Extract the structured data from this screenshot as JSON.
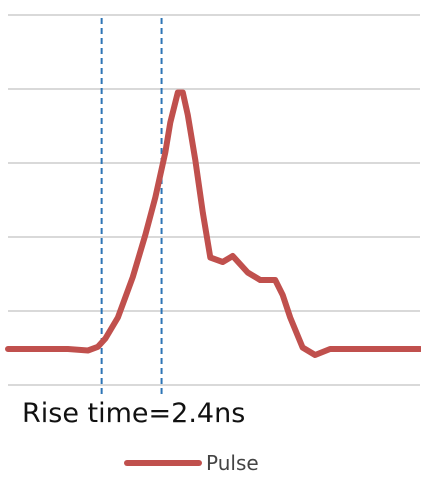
{
  "chart_data": {
    "type": "line",
    "title": "",
    "xlabel": "",
    "ylabel": "",
    "grid": true,
    "gridlines": 6,
    "annotation": "Rise time=2.4ns",
    "markers": [
      3.75,
      6.15
    ],
    "legend": "bottom",
    "series": [
      {
        "name": "Pulse",
        "color": "#c0504d",
        "x": [
          0,
          2.4,
          3.2,
          3.6,
          3.9,
          4.4,
          5.0,
          5.5,
          5.9,
          6.3,
          6.5,
          6.8,
          7.0,
          7.2,
          7.5,
          7.8,
          8.1,
          8.6,
          9.0,
          9.6,
          10.1,
          10.7,
          11.0,
          11.3,
          11.8,
          12.3,
          12.9,
          16.5
        ],
        "values": [
          0.24,
          0.24,
          0.23,
          0.255,
          0.31,
          0.45,
          0.72,
          1.0,
          1.25,
          1.55,
          1.75,
          1.95,
          1.95,
          1.8,
          1.5,
          1.15,
          0.85,
          0.82,
          0.86,
          0.75,
          0.7,
          0.7,
          0.6,
          0.45,
          0.25,
          0.2,
          0.24,
          0.24
        ]
      }
    ]
  }
}
